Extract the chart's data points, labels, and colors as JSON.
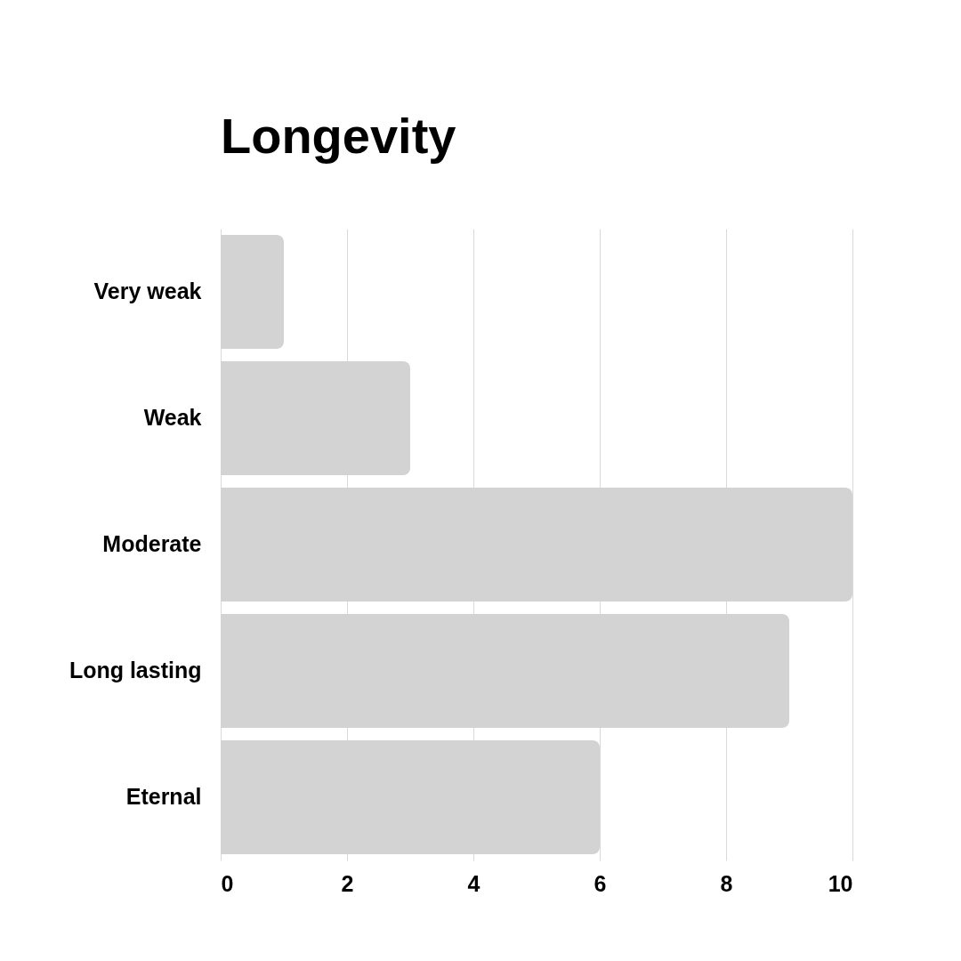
{
  "chart_data": {
    "type": "bar",
    "orientation": "horizontal",
    "title": "Longevity",
    "categories": [
      "Very weak",
      "Weak",
      "Moderate",
      "Long lasting",
      "Eternal"
    ],
    "values": [
      1,
      3,
      10,
      9,
      6
    ],
    "color": "#d3d3d3",
    "xlim": [
      0,
      10
    ],
    "xticks": [
      0,
      2,
      4,
      6,
      8,
      10
    ],
    "grid": "x"
  }
}
